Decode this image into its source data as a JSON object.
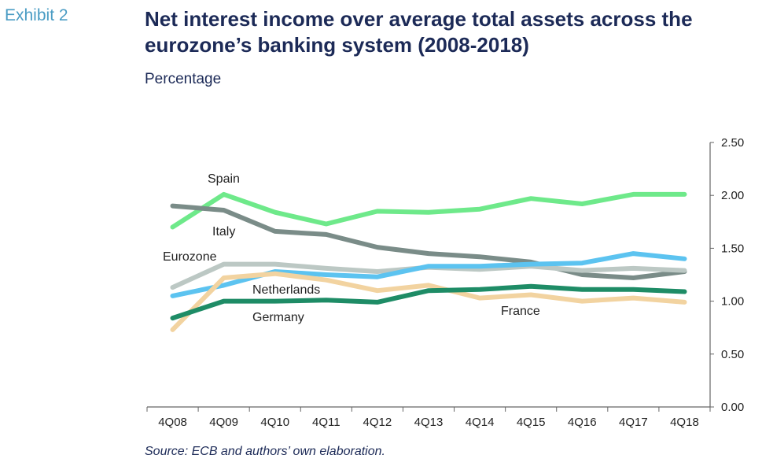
{
  "header": {
    "exhibit": "Exhibit 2",
    "title": "Net interest income over average total assets across the eurozone’s banking system (2008-2018)",
    "subtitle": "Percentage"
  },
  "footer": {
    "source": "Source: ECB and authors’ own elaboration."
  },
  "chart_data": {
    "type": "line",
    "title": "Net interest income over average total assets across the eurozone’s banking system (2008-2018)",
    "ylabel": "Percentage",
    "xlabel": "",
    "categories": [
      "4Q08",
      "4Q09",
      "4Q10",
      "4Q11",
      "4Q12",
      "4Q13",
      "4Q14",
      "4Q15",
      "4Q16",
      "4Q17",
      "4Q18"
    ],
    "ylim": [
      0,
      2.5
    ],
    "yticks": [
      "0.00",
      "0.50",
      "1.00",
      "1.50",
      "2.00",
      "2.50"
    ],
    "y_axis_position": "right",
    "grid": false,
    "legend": "direct labels",
    "series": [
      {
        "name": "Spain",
        "color": "#6ee98a",
        "values": [
          1.7,
          2.01,
          1.84,
          1.73,
          1.85,
          1.84,
          1.87,
          1.97,
          1.92,
          2.01,
          2.01
        ]
      },
      {
        "name": "Italy",
        "color": "#7a8c88",
        "values": [
          1.9,
          1.86,
          1.66,
          1.63,
          1.51,
          1.45,
          1.42,
          1.37,
          1.25,
          1.22,
          1.28
        ]
      },
      {
        "name": "Eurozone",
        "color": "#bcc8c4",
        "values": [
          1.13,
          1.35,
          1.35,
          1.31,
          1.28,
          1.32,
          1.3,
          1.33,
          1.29,
          1.31,
          1.29
        ]
      },
      {
        "name": "",
        "color": "#5cc3f0",
        "values": [
          1.05,
          1.15,
          1.28,
          1.25,
          1.23,
          1.33,
          1.33,
          1.35,
          1.36,
          1.45,
          1.4
        ]
      },
      {
        "name": "France",
        "color": "#f2d3a0",
        "values": [
          0.73,
          1.22,
          1.26,
          1.2,
          1.1,
          1.15,
          1.03,
          1.06,
          1.0,
          1.03,
          0.99
        ]
      },
      {
        "name": "Germany",
        "color": "#1e8c66",
        "values": [
          0.84,
          1.0,
          1.0,
          1.01,
          0.99,
          1.1,
          1.11,
          1.14,
          1.11,
          1.11,
          1.09
        ]
      }
    ],
    "annotations": [
      "Spain",
      "Italy",
      "Eurozone",
      "Netherlands",
      "Germany",
      "France"
    ]
  }
}
